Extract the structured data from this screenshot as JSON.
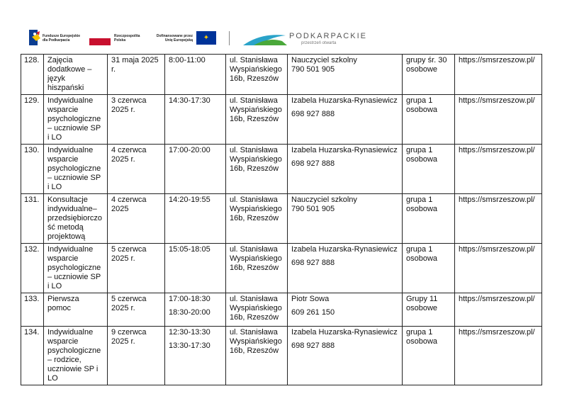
{
  "header": {
    "logo1_text": "Fundusze Europejskie dla Podkarpacia",
    "logo2_text": "Rzeczpospolita Polska",
    "logo3_text": "Dofinansowane przez Unię Europejską",
    "logo4_title": "PODKARPACKIE",
    "logo4_subtitle": "przestrzeń otwarta"
  },
  "rows": [
    {
      "no": "128.",
      "name": "Zajęcia dodatkowe – język hiszpański",
      "date": "31 maja 2025 r.",
      "time": "8:00-11:00",
      "time2": "",
      "place": "ul. Stanisława Wyspiańskiego 16b, Rzeszów",
      "person": "Nauczyciel szkolny",
      "phone": "790 501 905",
      "group": "grupy śr. 30 osobowe",
      "url": "https://smsrzeszow.pl/"
    },
    {
      "no": "129.",
      "name": "Indywidualne wsparcie psychologiczne – uczniowie SP i LO",
      "date": "3 czerwca 2025 r.",
      "time": "14:30-17:30",
      "time2": "",
      "place": "ul. Stanisława Wyspiańskiego 16b, Rzeszów",
      "person": "Izabela Huzarska-Rynasiewicz",
      "phone": "698 927 888",
      "group": "grupa 1 osobowa",
      "url": "https://smsrzeszow.pl/"
    },
    {
      "no": "130.",
      "name": "Indywidualne wsparcie psychologiczne – uczniowie SP i LO",
      "date": "4 czerwca 2025 r.",
      "time": "17:00-20:00",
      "time2": "",
      "place": "ul. Stanisława Wyspiańskiego 16b, Rzeszów",
      "person": "Izabela Huzarska-Rynasiewicz",
      "phone": "698 927 888",
      "group": "grupa 1 osobowa",
      "url": "https://smsrzeszow.pl/"
    },
    {
      "no": "131.",
      "name": "Konsultacje indywidualne– przedsiębiorczo ść metodą projektową",
      "date": "4 czerwca 2025",
      "time": "14:20-19:55",
      "time2": "",
      "place": "ul. Stanisława Wyspiańskiego 16b, Rzeszów",
      "person": "Nauczyciel szkolny",
      "phone": "790 501 905",
      "group": "grupa 1 osobowa",
      "url": "https://smsrzeszow.pl/"
    },
    {
      "no": "132.",
      "name": "Indywidualne wsparcie psychologiczne – uczniowie SP i LO",
      "date": "5 czerwca 2025 r.",
      "time": "15:05-18:05",
      "time2": "",
      "place": "ul. Stanisława Wyspiańskiego 16b, Rzeszów",
      "person": "Izabela Huzarska-Rynasiewicz",
      "phone": "698 927 888",
      "group": "grupa 1 osobowa",
      "url": "https://smsrzeszow.pl/"
    },
    {
      "no": "133.",
      "name": "Pierwsza pomoc",
      "date": "5 czerwca 2025 r.",
      "time": "17:00-18:30",
      "time2": "18:30-20:00",
      "place": "ul. Stanisława Wyspiańskiego 16b, Rzeszów",
      "person": "Piotr Sowa",
      "phone": "609 261 150",
      "group": "Grupy 11 osobowe",
      "url": "https://smsrzeszow.pl/"
    },
    {
      "no": "134.",
      "name": "Indywidualne wsparcie psychologiczne – rodzice, uczniowie SP i LO",
      "date": "9 czerwca 2025 r.",
      "time": "12:30-13:30",
      "time2": "13:30-17:30",
      "place": "ul. Stanisława Wyspiańskiego 16b, Rzeszów",
      "person": "Izabela Huzarska-Rynasiewicz",
      "phone": "698 927 888",
      "group": "grupa 1 osobowa",
      "url": "https://smsrzeszow.pl/"
    }
  ]
}
